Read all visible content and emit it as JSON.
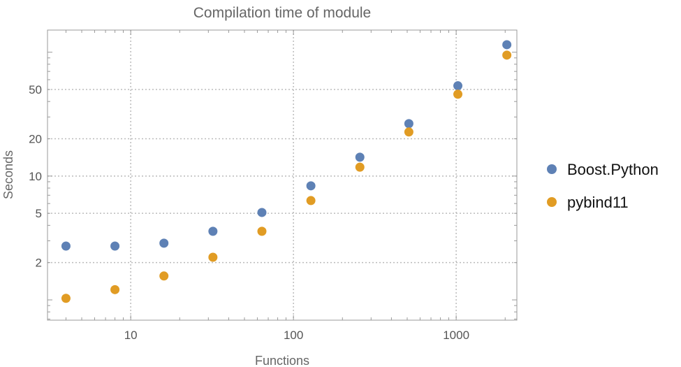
{
  "chart_data": {
    "type": "scatter",
    "title": "Compilation time of module",
    "xlabel": "Functions",
    "ylabel": "Seconds",
    "xscale": "log",
    "yscale": "log",
    "xlim": [
      3.08,
      2360
    ],
    "ylim": [
      0.686,
      151
    ],
    "grid": true,
    "legend_position": "right",
    "x_ticks": [
      10,
      100,
      1000
    ],
    "x_tick_labels": [
      "10",
      "100",
      "1000"
    ],
    "y_ticks": [
      2,
      5,
      10,
      20,
      50
    ],
    "y_tick_labels": [
      "2",
      "5",
      "10",
      "20",
      "50"
    ],
    "x": [
      4,
      8,
      16,
      32,
      64,
      128,
      256,
      512,
      1024,
      2048
    ],
    "series": [
      {
        "name": "Boost.Python",
        "color": "#5E81B5",
        "values": [
          2.72,
          2.72,
          2.87,
          3.58,
          5.08,
          8.34,
          14.2,
          26.5,
          53.6,
          115
        ]
      },
      {
        "name": "pybind11",
        "color": "#E19C24",
        "values": [
          1.03,
          1.21,
          1.56,
          2.21,
          3.58,
          6.34,
          11.8,
          22.7,
          45.8,
          94.8
        ]
      }
    ]
  }
}
